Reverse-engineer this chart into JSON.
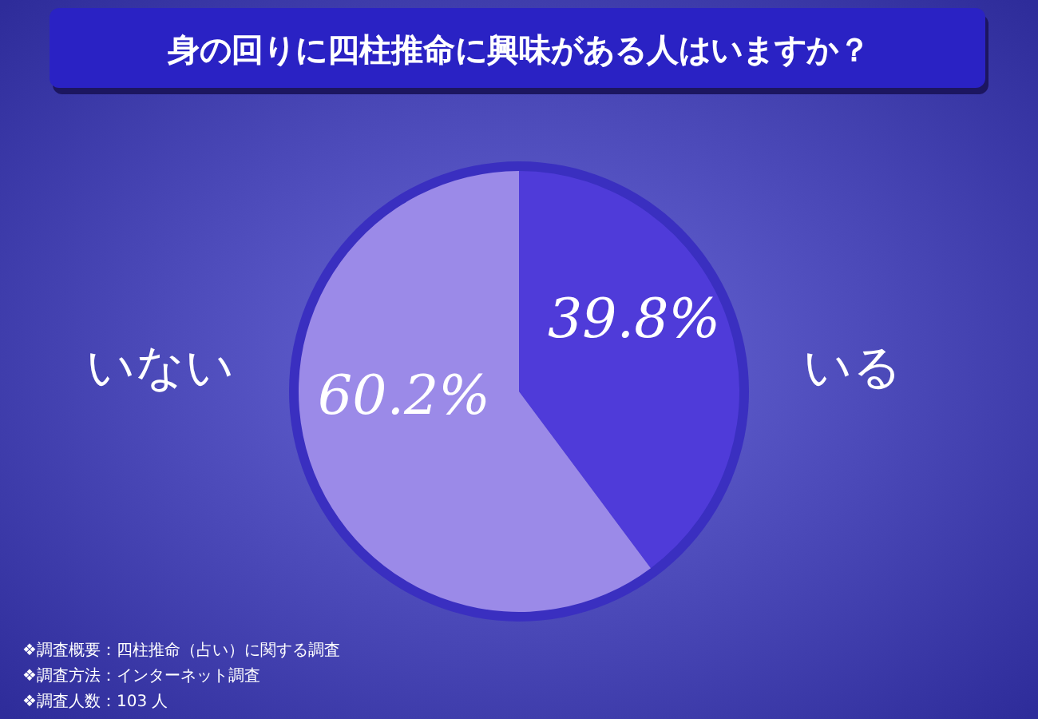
{
  "chart_data": {
    "type": "pie",
    "title": "身の回りに四柱推命に興味がある人はいますか？",
    "categories": [
      "いる",
      "いない"
    ],
    "values": [
      39.8,
      60.2
    ],
    "value_labels": [
      "39.8%",
      "60.2%"
    ],
    "colors": [
      "#4f3bd9",
      "#9b8ae8"
    ],
    "annotations": [
      "❖調査概要：四柱推命（占い）に関する調査",
      "❖調査方法：インターネット調査",
      "❖調査人数：103 人"
    ]
  }
}
